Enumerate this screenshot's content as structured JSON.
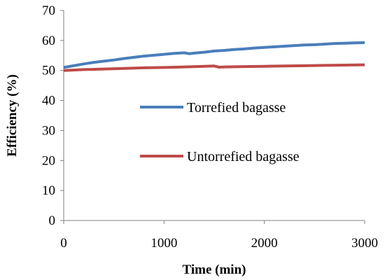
{
  "chart_data": {
    "type": "line",
    "xlabel": "Time (min)",
    "ylabel": "Efficiency (%)",
    "xlim": [
      0,
      3000
    ],
    "ylim": [
      0,
      70
    ],
    "xticks": [
      0,
      1000,
      2000,
      3000
    ],
    "yticks": [
      0,
      10,
      20,
      30,
      40,
      50,
      60,
      70
    ],
    "grid": false,
    "legend_position": "center-right",
    "series": [
      {
        "name": "Torrefied bagasse",
        "color": "#4a7ebb",
        "x": [
          0,
          100,
          200,
          300,
          400,
          500,
          600,
          700,
          800,
          900,
          1000,
          1100,
          1200,
          1250,
          1300,
          1400,
          1500,
          1600,
          1700,
          1800,
          1900,
          2000,
          2100,
          2200,
          2300,
          2400,
          2500,
          2600,
          2700,
          2800,
          2900,
          3000
        ],
        "y": [
          51.0,
          51.6,
          52.2,
          52.7,
          53.1,
          53.5,
          54.0,
          54.4,
          54.8,
          55.1,
          55.4,
          55.7,
          55.9,
          55.6,
          55.8,
          56.1,
          56.5,
          56.7,
          57.0,
          57.2,
          57.5,
          57.7,
          57.9,
          58.1,
          58.3,
          58.5,
          58.6,
          58.8,
          59.0,
          59.1,
          59.2,
          59.3
        ]
      },
      {
        "name": "Untorrefied bagasse",
        "color": "#be4b48",
        "x": [
          0,
          200,
          400,
          600,
          800,
          1000,
          1200,
          1400,
          1500,
          1550,
          1600,
          1800,
          2000,
          2200,
          2400,
          2600,
          2800,
          3000
        ],
        "y": [
          50.0,
          50.3,
          50.5,
          50.7,
          50.9,
          51.0,
          51.2,
          51.4,
          51.5,
          51.1,
          51.2,
          51.3,
          51.4,
          51.5,
          51.6,
          51.7,
          51.8,
          51.9
        ]
      }
    ]
  }
}
